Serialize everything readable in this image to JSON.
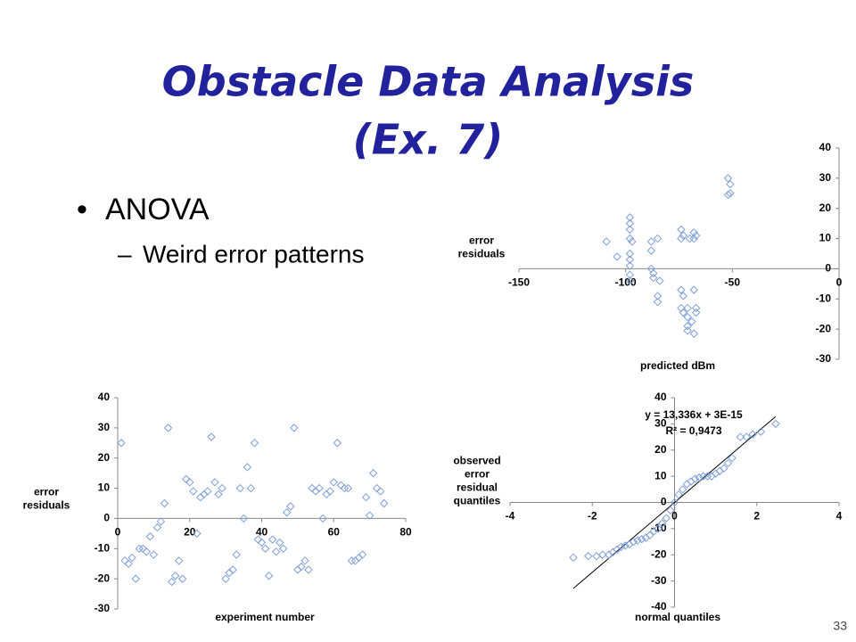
{
  "slide": {
    "title_lines": [
      "Obstacle Data Analysis",
      "(Ex. 7)"
    ],
    "bullet": "ANOVA",
    "sub_bullet": "Weird error patterns",
    "page_number": "33"
  },
  "chart_data": [
    {
      "type": "scatter",
      "ylabel": [
        "error",
        "residuals"
      ],
      "xlabel": "predicted dBm",
      "color": "#7f9fd8",
      "xlim": [
        -150,
        0
      ],
      "ylim": [
        -30,
        40
      ],
      "xticks": [
        -150,
        -100,
        -50,
        0
      ],
      "yticks": [
        -30,
        -20,
        -10,
        0,
        10,
        20,
        30,
        40
      ],
      "x": [
        -109,
        -104,
        -98,
        -98,
        -98,
        -98,
        -97,
        -98,
        -98,
        -98,
        -98,
        -98,
        -88,
        -88,
        -88,
        -87,
        -87,
        -85,
        -84,
        -85,
        -85,
        -74,
        -74,
        -73,
        -70,
        -68,
        -68,
        -67,
        -74,
        -73,
        -74,
        -73,
        -71,
        -71,
        -71,
        -71,
        -69,
        -68,
        -68,
        -67,
        -67,
        -52,
        -51,
        -51,
        -52
      ],
      "values": [
        9,
        4,
        17,
        15,
        13,
        10,
        9,
        5,
        3,
        1,
        -2,
        -4,
        9,
        6,
        0,
        -1.5,
        -3,
        10,
        -4,
        -9,
        -11,
        13,
        10,
        11,
        10,
        12,
        10,
        11,
        -7,
        -9,
        -13,
        -14.5,
        -13,
        -16,
        -19,
        -20.5,
        -17.5,
        -21.5,
        -7,
        -13,
        -14.5,
        30,
        28,
        25,
        24.5
      ]
    },
    {
      "type": "scatter",
      "ylabel": [
        "error",
        "residuals"
      ],
      "xlabel": "experiment number",
      "color": "#7f9fd8",
      "xlim": [
        0,
        80
      ],
      "ylim": [
        -30,
        40
      ],
      "xticks": [
        0,
        20,
        40,
        60,
        80
      ],
      "yticks": [
        -30,
        -20,
        -10,
        0,
        10,
        20,
        30,
        40
      ],
      "x": [
        1,
        2,
        3,
        4,
        5,
        6,
        7,
        8,
        9,
        10,
        11,
        12,
        13,
        14,
        15,
        16,
        17,
        18,
        19,
        20,
        21,
        22,
        23,
        24,
        25,
        26,
        27,
        28,
        29,
        30,
        31,
        32,
        33,
        34,
        35,
        36,
        37,
        38,
        39,
        40,
        41,
        42,
        43,
        44,
        45,
        46,
        47,
        48,
        49,
        50,
        51,
        52,
        53,
        54,
        55,
        56,
        57,
        58,
        59,
        60,
        61,
        62,
        63,
        64,
        65,
        66,
        67,
        68,
        69,
        70,
        71,
        72,
        73,
        74
      ],
      "values": [
        25,
        -14,
        -15,
        -13,
        -20,
        -10,
        -10,
        -11,
        -6,
        -12,
        -3,
        -1,
        5,
        30,
        -21,
        -19,
        -14,
        -20,
        13,
        12,
        9,
        -5,
        7,
        8,
        9,
        27,
        12,
        8,
        10,
        -20,
        -18,
        -17,
        -12,
        10,
        0,
        17,
        10,
        25,
        -7,
        -8,
        -10,
        -19,
        -7,
        -11,
        -8,
        -10,
        2,
        4,
        30,
        -17,
        -16,
        -14,
        -17,
        10,
        9,
        10,
        0,
        8,
        9,
        12,
        25,
        11,
        10,
        10,
        -14,
        -14,
        -13,
        -12,
        7,
        1,
        15,
        10,
        9,
        5
      ]
    },
    {
      "type": "scatter",
      "ylabel": [
        "observed",
        "error",
        "residual",
        "quantiles"
      ],
      "xlabel": "normal quantiles",
      "color": "#7f9fd8",
      "xlim": [
        -4,
        4
      ],
      "ylim": [
        -40,
        40
      ],
      "xticks": [
        -4,
        -2,
        0,
        2,
        4
      ],
      "yticks": [
        -40,
        -30,
        -20,
        -10,
        0,
        10,
        20,
        30,
        40
      ],
      "x": [
        -2.46,
        -2.1,
        -1.9,
        -1.75,
        -1.6,
        -1.5,
        -1.4,
        -1.3,
        -1.2,
        -1.1,
        -1.0,
        -0.9,
        -0.8,
        -0.7,
        -0.6,
        -0.5,
        -0.4,
        -0.3,
        -0.2,
        -0.1,
        0,
        0.1,
        0.2,
        0.3,
        0.4,
        0.5,
        0.6,
        0.7,
        0.8,
        0.9,
        1.0,
        1.1,
        1.2,
        1.3,
        1.4,
        1.6,
        1.75,
        1.9,
        2.1,
        2.46
      ],
      "values": [
        -21,
        -20.5,
        -20.5,
        -20,
        -20,
        -19,
        -18,
        -17,
        -16.5,
        -16,
        -15,
        -14.5,
        -14,
        -13.5,
        -12.5,
        -11,
        -10,
        -8,
        -6,
        -3,
        0,
        3,
        5,
        7,
        8,
        9,
        9.5,
        10,
        10,
        10,
        11,
        12,
        13,
        15,
        17,
        25,
        25,
        26,
        27,
        30
      ],
      "trendline": {
        "slope": 13.336,
        "intercept": 3e-15,
        "color": "#000000",
        "labels": [
          "y = 13,336x + 3E-15",
          "R² = 0,9473"
        ]
      }
    }
  ]
}
